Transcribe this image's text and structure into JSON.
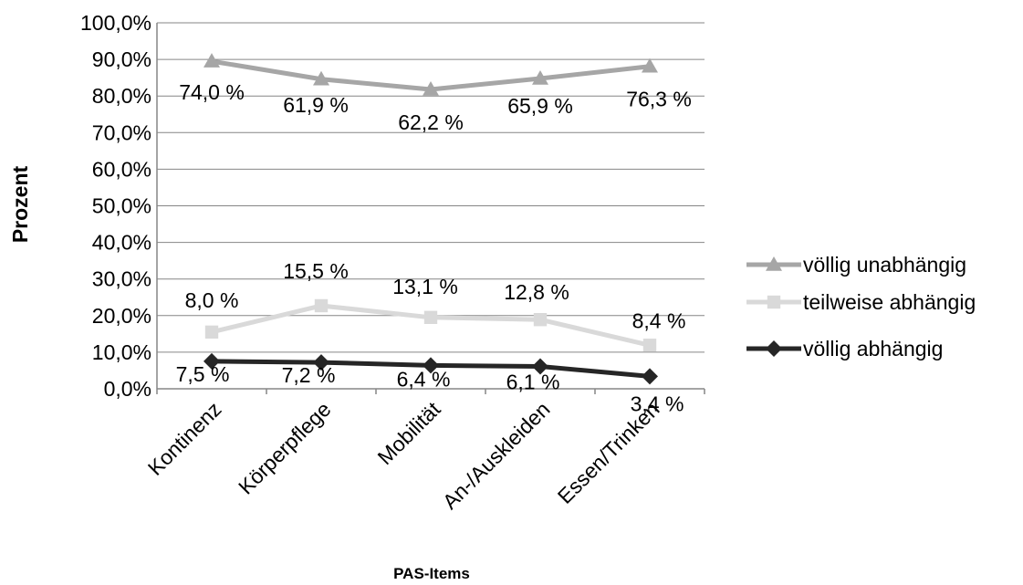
{
  "chart_data": {
    "type": "line",
    "categories": [
      "Kontinenz",
      "Körperpflege",
      "Mobilität",
      "An-/Auskleiden",
      "Essen/Trinken"
    ],
    "xlabel": "PAS-Items",
    "ylabel": "Prozent",
    "ylim": [
      0,
      100
    ],
    "yticks": [
      "0,0%",
      "10,0%",
      "20,0%",
      "30,0%",
      "40,0%",
      "50,0%",
      "60,0%",
      "70,0%",
      "80,0%",
      "90,0%",
      "100,0%"
    ],
    "grid": true,
    "legend_position": "right",
    "series": [
      {
        "name": "völlig unabhängig",
        "color": "#a6a6a6",
        "marker": "triangle",
        "values": [
          89.5,
          84.6,
          81.8,
          84.8,
          88.1
        ],
        "labels": [
          "74,0 %",
          "61,9 %",
          "62,2 %",
          "65,9 %",
          "76,3 %"
        ]
      },
      {
        "name": "teilweise abhängig",
        "color": "#d9d9d9",
        "marker": "square",
        "values": [
          15.5,
          22.7,
          19.5,
          18.9,
          11.9
        ],
        "labels": [
          "8,0 %",
          "15,5 %",
          "13,1 %",
          "12,8 %",
          "8,4 %"
        ]
      },
      {
        "name": "völlig abhängig",
        "color": "#262626",
        "marker": "diamond",
        "values": [
          7.5,
          7.2,
          6.4,
          6.1,
          3.4
        ],
        "labels": [
          "7,5 %",
          "7,2 %",
          "6,4 %",
          "6,1 %",
          "3,4 %"
        ]
      }
    ]
  }
}
